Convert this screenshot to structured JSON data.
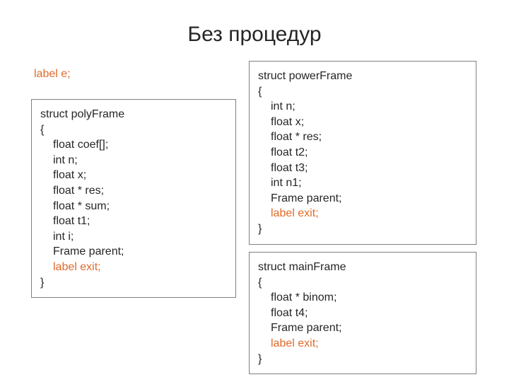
{
  "title": "Без процедур",
  "label_e": "label e;",
  "poly": {
    "head": "struct polyFrame",
    "open": "{",
    "lines": [
      "float coef[];",
      "int n;",
      "float x;",
      "float * res;",
      "float * sum;",
      "float t1;",
      "int i;",
      "Frame parent;"
    ],
    "exit": "label exit;",
    "close": "}"
  },
  "power": {
    "head": "struct powerFrame",
    "open": "{",
    "lines": [
      "int n;",
      "float x;",
      "float * res;",
      "float t2;",
      "float t3;",
      "int n1;",
      "Frame parent;"
    ],
    "exit": "label exit;",
    "close": "}"
  },
  "main": {
    "head": "struct mainFrame",
    "open": "{",
    "lines": [
      "float * binom;",
      "float t4;",
      "Frame parent;"
    ],
    "exit": "label exit;",
    "close": "}"
  },
  "colors": {
    "text": "#262626",
    "highlight": "#e06a2a",
    "border": "#808080",
    "background": "#ffffff"
  }
}
